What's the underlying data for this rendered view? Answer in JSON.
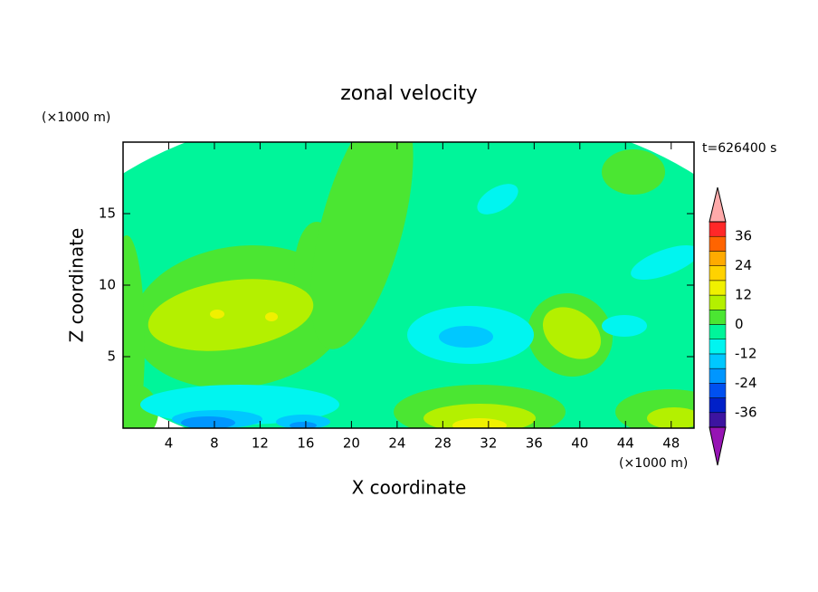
{
  "chart_data": {
    "type": "contour",
    "title": "zonal velocity",
    "time_label": "t=626400 s",
    "x_label": "X coordinate",
    "y_label": "Z coordinate",
    "x_unit": "(×1000 m)",
    "y_unit": "(×1000 m)",
    "xlim": [
      0,
      50
    ],
    "ylim": [
      0,
      20
    ],
    "xticks": [
      4,
      8,
      12,
      16,
      20,
      24,
      28,
      32,
      36,
      40,
      44,
      48
    ],
    "yticks": [
      5,
      10,
      15
    ],
    "levels": [
      -42,
      -36,
      -30,
      -24,
      -18,
      -12,
      -6,
      0,
      6,
      12,
      18,
      24,
      30,
      36,
      42
    ],
    "colors": [
      "#3c14a0",
      "#0020c8",
      "#0050f0",
      "#0096ff",
      "#00c8ff",
      "#00f5f0",
      "#00f59a",
      "#4be632",
      "#b4f000",
      "#f0f000",
      "#ffd200",
      "#ffaa00",
      "#ff6400",
      "#ff2828"
    ],
    "under_color": "#9614b4",
    "over_color": "#ffaaaa",
    "colorbar_ticks": [
      -36,
      -24,
      -12,
      0,
      12,
      24,
      36
    ]
  }
}
